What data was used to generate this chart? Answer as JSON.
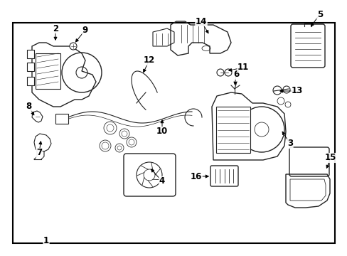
{
  "bg_color": "#ffffff",
  "border_color": "#000000",
  "line_color": "#222222",
  "label_color": "#000000",
  "figsize": [
    4.89,
    3.6
  ],
  "dpi": 100
}
